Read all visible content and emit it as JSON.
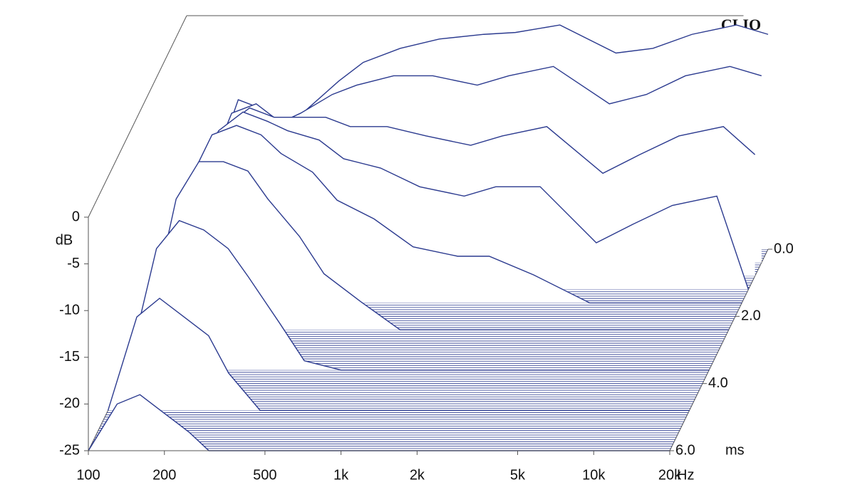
{
  "chart_data": {
    "type": "waterfall",
    "logo": "CLIO",
    "y_unit": "dB",
    "x_unit": "Hz",
    "z_unit": "ms",
    "color": "#2b3a8f",
    "log_x": true,
    "x": [
      100,
      130,
      160,
      200,
      250,
      300,
      400,
      500,
      700,
      1000,
      1500,
      2000,
      3000,
      5000,
      7000,
      10000,
      15000,
      20000
    ],
    "xlim": [
      100,
      20000
    ],
    "xticks": [
      100,
      200,
      500,
      {
        "value": 1000,
        "label": "1k"
      },
      {
        "value": 2000,
        "label": "2k"
      },
      {
        "value": 5000,
        "label": "5k"
      },
      {
        "value": 10000,
        "label": "10k"
      },
      {
        "value": 20000,
        "label": "20k"
      }
    ],
    "ylim": [
      -25,
      0
    ],
    "yticks": [
      0,
      -5,
      -10,
      -15,
      -20,
      -25
    ],
    "zlim": [
      0,
      6
    ],
    "zticks": [
      {
        "value": 0,
        "label": "0.0"
      },
      {
        "value": 2,
        "label": "2.0"
      },
      {
        "value": 4,
        "label": "4.0"
      },
      {
        "value": 6,
        "label": "6.0"
      }
    ],
    "slices": [
      {
        "t": 0,
        "values": [
          -25,
          -16,
          -9,
          -10,
          -12,
          -10,
          -7,
          -5,
          -3.5,
          -2.5,
          -2,
          -1.8,
          -1,
          -4,
          -3.5,
          -2,
          -1,
          -2
        ]
      },
      {
        "t": 0.4,
        "values": [
          -25,
          -15,
          -9,
          -8,
          -10,
          -9,
          -7,
          -6,
          -5,
          -5,
          -6,
          -5,
          -4,
          -8,
          -7,
          -5,
          -4,
          -5
        ]
      },
      {
        "t": 0.8,
        "values": [
          -25,
          -14,
          -9,
          -7,
          -8,
          -8,
          -8,
          -9,
          -9,
          -10,
          -11,
          -10,
          -9,
          -14,
          -12,
          -10,
          -9,
          -12
        ]
      },
      {
        "t": 1.2,
        "values": [
          -25,
          -13,
          -8,
          -6,
          -7,
          -8,
          -9,
          -11,
          -12,
          -14,
          -15,
          -14,
          -14,
          -20,
          -18,
          -16,
          -15,
          -25
        ]
      },
      {
        "t": 1.6,
        "values": [
          -25,
          -12,
          -7,
          -6,
          -7,
          -9,
          -11,
          -14,
          -16,
          -19,
          -20,
          -20,
          -22,
          -25,
          -25,
          -25,
          -25,
          -25
        ]
      },
      {
        "t": 2.4,
        "values": [
          -25,
          -11,
          -7,
          -7,
          -8,
          -11,
          -15,
          -19,
          -22,
          -25,
          -25,
          -25,
          -25,
          -25,
          -25,
          -25,
          -25,
          -25
        ]
      },
      {
        "t": 3.6,
        "values": [
          -25,
          -12,
          -9,
          -10,
          -12,
          -15,
          -20,
          -24,
          -25,
          -25,
          -25,
          -25,
          -25,
          -25,
          -25,
          -25,
          -25,
          -25
        ]
      },
      {
        "t": 4.8,
        "values": [
          -25,
          -15,
          -13,
          -15,
          -17,
          -21,
          -25,
          -25,
          -25,
          -25,
          -25,
          -25,
          -25,
          -25,
          -25,
          -25,
          -25,
          -25
        ]
      },
      {
        "t": 6,
        "values": [
          -25,
          -20,
          -19,
          -21,
          -23,
          -25,
          -25,
          -25,
          -25,
          -25,
          -25,
          -25,
          -25,
          -25,
          -25,
          -25,
          -25,
          -25
        ]
      }
    ]
  }
}
